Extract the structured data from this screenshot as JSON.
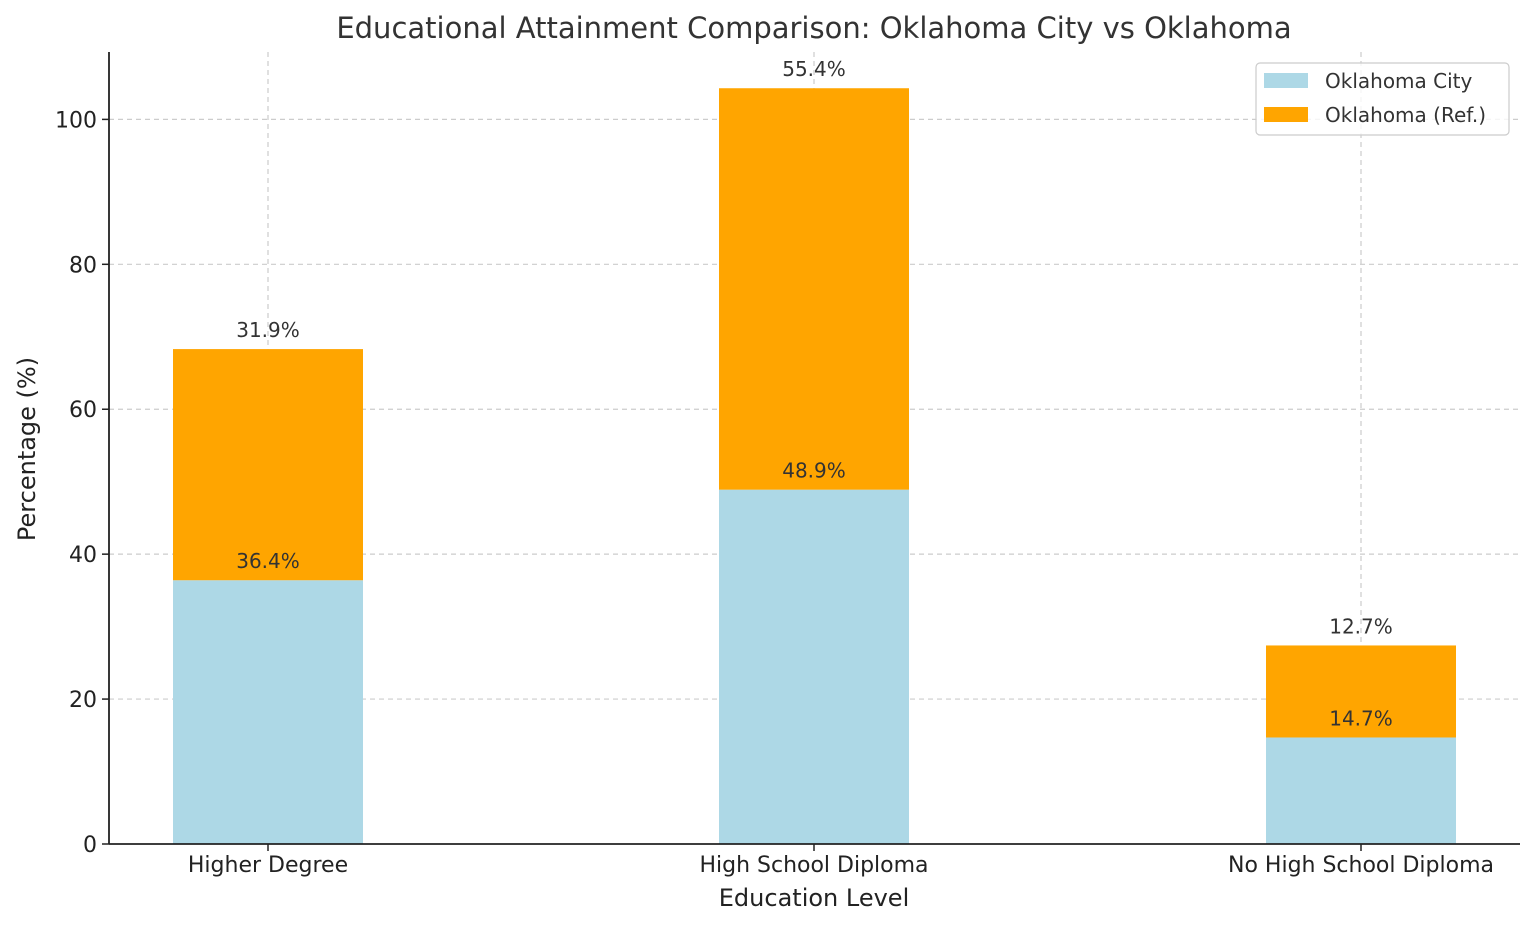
{
  "chart_data": {
    "type": "bar",
    "stacked": true,
    "title": "Educational Attainment Comparison: Oklahoma City vs Oklahoma",
    "xlabel": "Education Level",
    "ylabel": "Percentage (%)",
    "categories": [
      "Higher Degree",
      "High School Diploma",
      "No High School Diploma"
    ],
    "series": [
      {
        "name": "Oklahoma City",
        "values": [
          36.4,
          48.9,
          14.7
        ],
        "color": "#add8e6",
        "labels": [
          "36.4%",
          "48.9%",
          "14.7%"
        ]
      },
      {
        "name": "Oklahoma (Ref.)",
        "values": [
          31.9,
          55.4,
          12.7
        ],
        "color": "#ffa500",
        "labels": [
          "31.9%",
          "55.4%",
          "12.7%"
        ]
      }
    ],
    "ylim": [
      0,
      109.3
    ],
    "yticks": [
      0,
      20,
      40,
      60,
      80,
      100
    ],
    "grid": true,
    "legend_position": "top-right"
  }
}
